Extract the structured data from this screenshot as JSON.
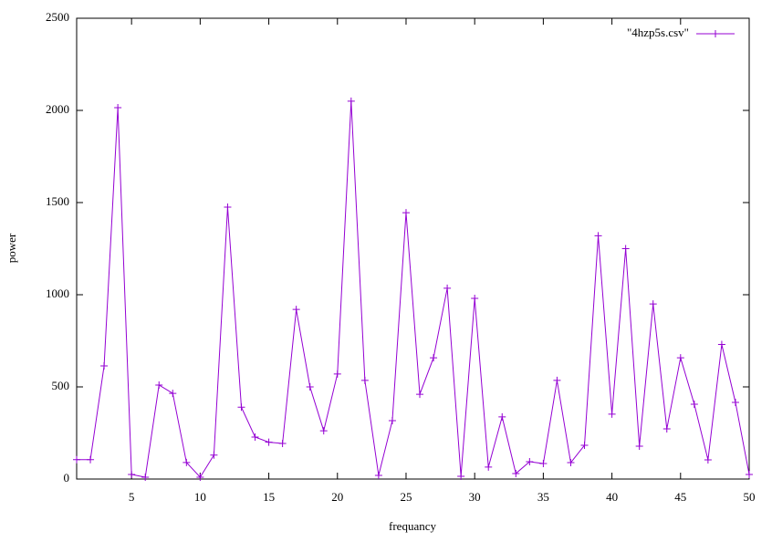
{
  "chart_data": {
    "type": "line",
    "xlabel": "frequancy",
    "ylabel": "power",
    "x": [
      1,
      2,
      3,
      4,
      5,
      6,
      7,
      8,
      9,
      10,
      11,
      12,
      13,
      14,
      15,
      16,
      17,
      18,
      19,
      20,
      21,
      22,
      23,
      24,
      25,
      26,
      27,
      28,
      29,
      30,
      31,
      32,
      33,
      34,
      35,
      36,
      37,
      38,
      39,
      40,
      41,
      42,
      43,
      44,
      45,
      46,
      47,
      48,
      49,
      50
    ],
    "series": [
      {
        "name": "\"4hzp5s.csv\"",
        "color": "#9400d3",
        "values": [
          105,
          105,
          614,
          2015,
          25,
          10,
          510,
          465,
          90,
          10,
          130,
          1475,
          390,
          228,
          200,
          193,
          920,
          500,
          262,
          570,
          2050,
          535,
          20,
          317,
          1445,
          460,
          658,
          1035,
          15,
          980,
          65,
          337,
          30,
          94,
          84,
          535,
          89,
          183,
          1320,
          352,
          1250,
          178,
          950,
          272,
          658,
          406,
          104,
          730,
          416,
          25
        ]
      }
    ],
    "xlim": [
      1,
      50
    ],
    "xticks": [
      5,
      10,
      15,
      20,
      25,
      30,
      35,
      40,
      45,
      50
    ],
    "ylim": [
      0,
      2500
    ],
    "yticks": [
      0,
      500,
      1000,
      1500,
      2000,
      2500
    ],
    "grid": false,
    "legend": "top-right"
  }
}
